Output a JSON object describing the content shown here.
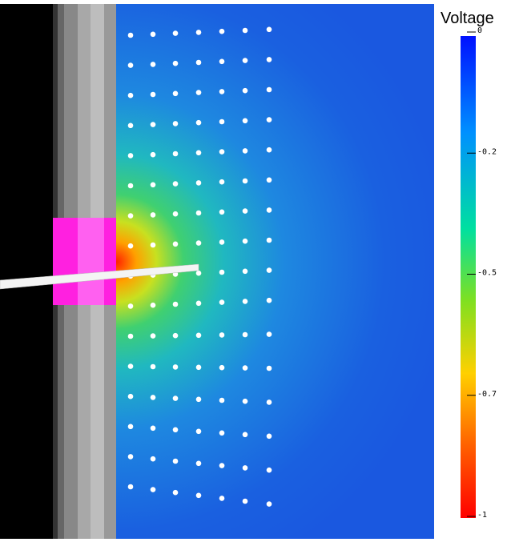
{
  "colorbar": {
    "title": "Voltage",
    "labels": [
      "0",
      "-0.2",
      "-0.5",
      "-0.7",
      "-1"
    ]
  }
}
